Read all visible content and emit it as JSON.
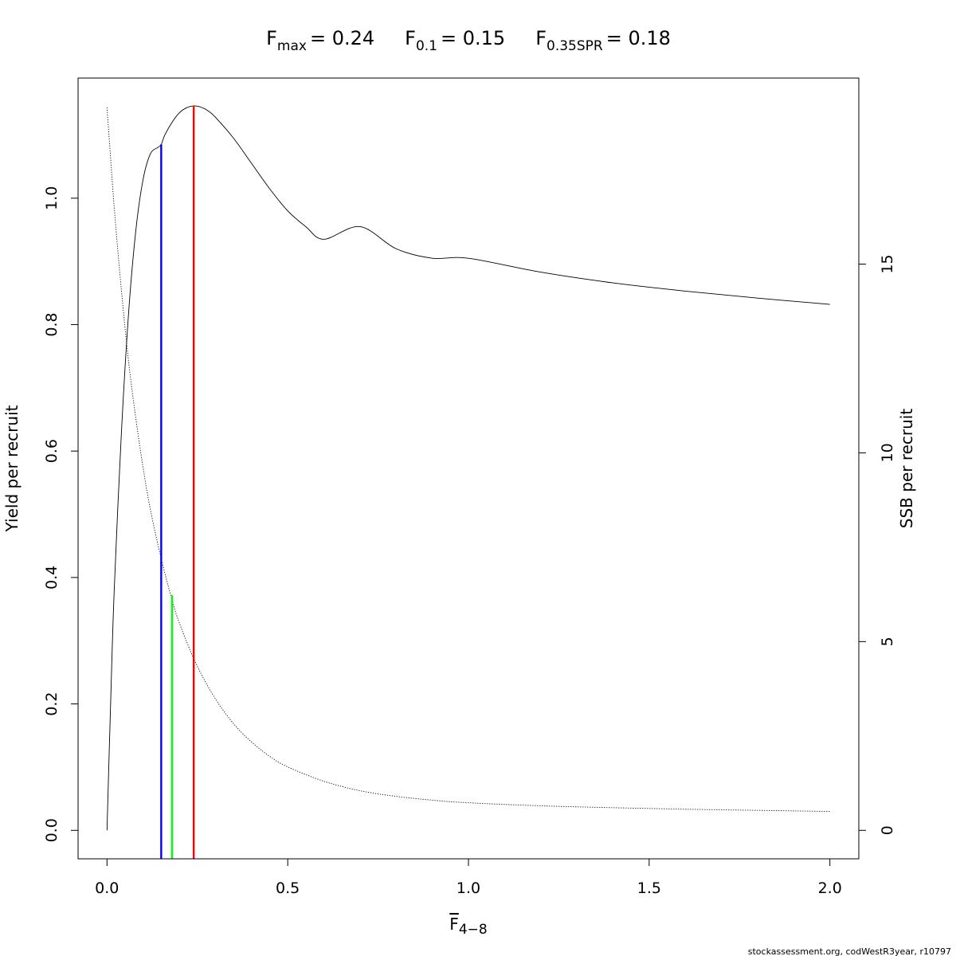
{
  "title": {
    "parts": [
      {
        "symbol": "F",
        "subscript": "max",
        "value": "= 0.24"
      },
      {
        "symbol": "F",
        "subscript": "0.1",
        "value": "= 0.15"
      },
      {
        "symbol": "F",
        "subscript": "0.35SPR",
        "value": "= 0.18"
      }
    ]
  },
  "footer": "stockassessment.org, codWestR3year, r10797",
  "chart_data": {
    "type": "line",
    "xlabel": {
      "symbol": "F",
      "subscript": "4−8",
      "overline": true
    },
    "ylabel_left": "Yield per recruit",
    "ylabel_right": "SSB per recruit",
    "xlim": [
      -0.08,
      2.08
    ],
    "ylim_left": [
      -0.045,
      1.19
    ],
    "ylim_right": [
      -0.754,
      19.928
    ],
    "x_ticks": [
      {
        "value": 0.0,
        "label": "0.0"
      },
      {
        "value": 0.5,
        "label": "0.5"
      },
      {
        "value": 1.0,
        "label": "1.0"
      },
      {
        "value": 1.5,
        "label": "1.5"
      },
      {
        "value": 2.0,
        "label": "2.0"
      }
    ],
    "y_left_ticks": [
      {
        "value": 0.0,
        "label": "0.0"
      },
      {
        "value": 0.2,
        "label": "0.2"
      },
      {
        "value": 0.4,
        "label": "0.4"
      },
      {
        "value": 0.6,
        "label": "0.6"
      },
      {
        "value": 0.8,
        "label": "0.8"
      },
      {
        "value": 1.0,
        "label": "1.0"
      }
    ],
    "y_right_ticks": [
      {
        "value": 0,
        "label": "0"
      },
      {
        "value": 5,
        "label": "5"
      },
      {
        "value": 10,
        "label": "10"
      },
      {
        "value": 15,
        "label": "15"
      }
    ],
    "series": [
      {
        "id": "yield",
        "axis": "left",
        "style": "solid",
        "color": "#000000",
        "x": [
          0,
          0.01,
          0.02,
          0.04,
          0.06,
          0.08,
          0.1,
          0.12,
          0.14,
          0.15,
          0.16,
          0.18,
          0.2,
          0.22,
          0.24,
          0.26,
          0.28,
          0.3,
          0.35,
          0.4,
          0.45,
          0.5,
          0.55,
          0.6,
          0.7,
          0.8,
          0.9,
          1.0,
          1.2,
          1.4,
          1.6,
          1.8,
          2.0
        ],
        "y": [
          0,
          0.2,
          0.38,
          0.63,
          0.82,
          0.95,
          1.03,
          1.07,
          1.08,
          1.085,
          1.1,
          1.12,
          1.135,
          1.143,
          1.146,
          1.144,
          1.138,
          1.128,
          1.095,
          1.055,
          1.015,
          0.98,
          0.955,
          0.935,
          0.955,
          0.92,
          0.905,
          0.905,
          0.883,
          0.866,
          0.853,
          0.842,
          0.832
        ]
      },
      {
        "id": "ssb",
        "axis": "right",
        "style": "dotted",
        "color": "#000000",
        "x": [
          0,
          0.02,
          0.04,
          0.06,
          0.08,
          0.1,
          0.12,
          0.15,
          0.18,
          0.2,
          0.24,
          0.28,
          0.32,
          0.36,
          0.4,
          0.45,
          0.5,
          0.6,
          0.7,
          0.8,
          0.9,
          1.0,
          1.2,
          1.4,
          1.6,
          1.8,
          2.0
        ],
        "y": [
          19.15,
          16.5,
          14.3,
          12.4,
          10.9,
          9.6,
          8.5,
          7.2,
          6.1,
          5.5,
          4.55,
          3.8,
          3.2,
          2.72,
          2.34,
          1.96,
          1.68,
          1.3,
          1.05,
          0.9,
          0.8,
          0.73,
          0.65,
          0.6,
          0.56,
          0.53,
          0.5
        ]
      }
    ],
    "reference_lines": [
      {
        "id": "f01",
        "x": 0.15,
        "color": "#0000ff",
        "top_axis": "left",
        "top": 1.085
      },
      {
        "id": "f35spr",
        "x": 0.18,
        "color": "#00ff00",
        "top_axis": "left",
        "top": 0.372
      },
      {
        "id": "fmax",
        "x": 0.24,
        "color": "#ff0000",
        "top_axis": "left",
        "top": 1.146
      }
    ]
  }
}
